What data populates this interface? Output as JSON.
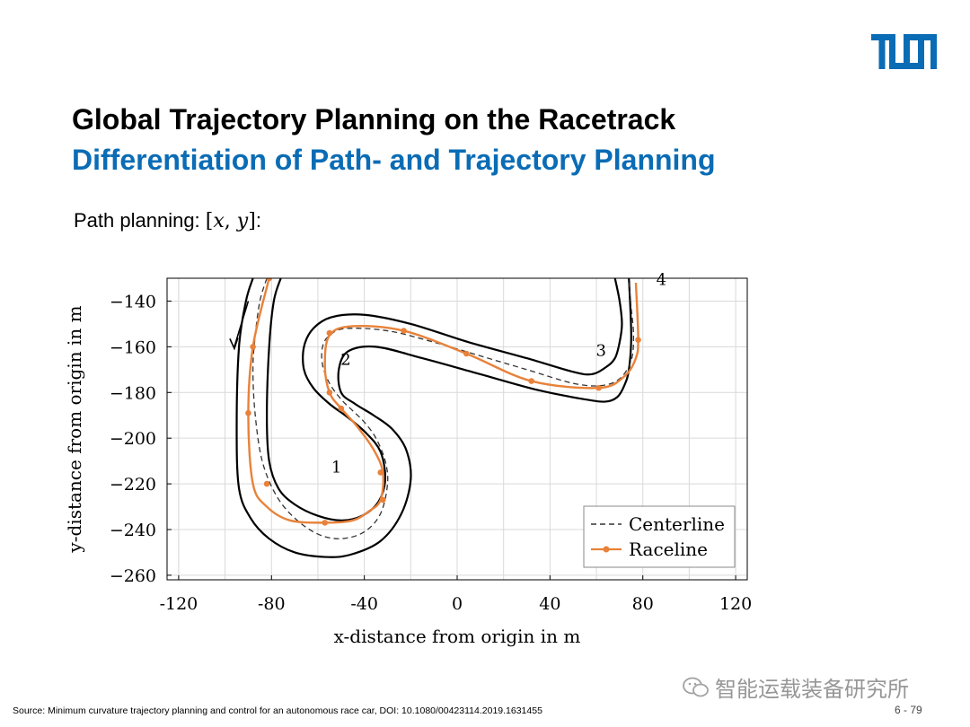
{
  "slide": {
    "title": "Global Trajectory Planning on the Racetrack",
    "subtitle": "Differentiation of Path- and Trajectory Planning",
    "lead_text": "Path planning: ",
    "lead_math_x": "x",
    "lead_math_y": "y",
    "lead_suffix": ":",
    "source": "Source: Minimum curvature trajectory planning and control for an autonomous race car, DOI: 10.1080/00423114.2019.1631455",
    "page_number": "6 - 79",
    "watermark": "智能运载装备研究所",
    "logo": "TUM"
  },
  "colors": {
    "title": "#000000",
    "subtitle": "#0a6cb5",
    "logo": "#0a6cb5",
    "track": "#000000",
    "centerline": "#333333",
    "raceline": "#e8823a",
    "grid": "#d9d9d9"
  },
  "chart_data": {
    "type": "line",
    "xlabel": "x-distance from origin in m",
    "ylabel": "y-distance from origin in m",
    "xlim": [
      -125,
      125
    ],
    "ylim": [
      -262,
      -130
    ],
    "xticks": [
      -120,
      -80,
      -40,
      0,
      40,
      80,
      120
    ],
    "yticks": [
      -140,
      -160,
      -180,
      -200,
      -220,
      -240,
      -260
    ],
    "grid": true,
    "legend_position": "bottom-right",
    "series": [
      {
        "name": "Centerline",
        "style": "dashed",
        "x": [
          -82,
          -85,
          -87,
          -88,
          -87,
          -84,
          -78,
          -70,
          -60,
          -50,
          -40,
          -33,
          -30,
          -31,
          -35,
          -40,
          -45,
          -50,
          -55,
          -58,
          -58,
          -55,
          -48,
          -30,
          -10,
          10,
          30,
          50,
          62,
          70,
          75,
          76,
          75,
          74
        ],
        "y": [
          -130,
          -140,
          -155,
          -170,
          -190,
          -210,
          -225,
          -235,
          -242,
          -244,
          -241,
          -233,
          -220,
          -210,
          -200,
          -193,
          -188,
          -183,
          -176,
          -168,
          -160,
          -155,
          -152,
          -153,
          -158,
          -164,
          -170,
          -176,
          -177,
          -174,
          -166,
          -155,
          -143,
          -132
        ]
      },
      {
        "name": "Raceline",
        "style": "solid-markers",
        "x": [
          -81,
          -88,
          -90,
          -88,
          -82,
          -72,
          -57,
          -45,
          -38,
          -33,
          -32,
          -36,
          -43,
          -50,
          -55,
          -57,
          -55,
          -45,
          -23,
          4,
          32,
          61,
          72,
          77,
          78,
          77
        ],
        "y": [
          -130,
          -160,
          -190,
          -220,
          -230,
          -236,
          -237,
          -236,
          -232,
          -227,
          -215,
          -205,
          -195,
          -187,
          -180,
          -168,
          -155,
          -151,
          -153,
          -163,
          -175,
          -178,
          -173,
          -165,
          -156,
          -132
        ],
        "markers_x": [
          -81,
          -88,
          -90,
          -82,
          -57,
          -32,
          -33,
          -50,
          -55,
          -55,
          -23,
          4,
          32,
          61,
          78
        ],
        "markers_y": [
          -130,
          -160,
          -189,
          -220,
          -237,
          -227,
          -215,
          -187,
          -180,
          -154,
          -153,
          -163,
          -175,
          -178,
          -157
        ]
      },
      {
        "name": "Track outer boundary",
        "style": "solid",
        "x": [
          -88,
          -91,
          -94,
          -95,
          -94,
          -89,
          -81,
          -70,
          -57,
          -46,
          -33,
          -24,
          -20,
          -22,
          -28,
          -36,
          -44,
          -50,
          -51,
          -47,
          -35,
          -15,
          10,
          35,
          55,
          64,
          69,
          72,
          74,
          75,
          74
        ],
        "y": [
          -130,
          -140,
          -160,
          -195,
          -222,
          -235,
          -244,
          -250,
          -252,
          -251,
          -245,
          -233,
          -218,
          -205,
          -196,
          -190,
          -185,
          -180,
          -170,
          -162,
          -160,
          -165,
          -172,
          -179,
          -183,
          -184,
          -182,
          -177,
          -170,
          -155,
          -130
        ]
      },
      {
        "name": "Track inner boundary",
        "style": "solid",
        "x": [
          -76,
          -79,
          -81,
          -82,
          -81,
          -77,
          -70,
          -60,
          -50,
          -41,
          -34,
          -31,
          -33,
          -39,
          -47,
          -55,
          -62,
          -66,
          -66,
          -62,
          -54,
          -40,
          -20,
          5,
          30,
          50,
          58,
          64,
          68,
          70,
          71,
          70,
          68
        ],
        "y": [
          -130,
          -140,
          -160,
          -190,
          -210,
          -222,
          -229,
          -234,
          -236,
          -234,
          -228,
          -218,
          -206,
          -198,
          -191,
          -185,
          -178,
          -170,
          -160,
          -152,
          -147,
          -146,
          -150,
          -158,
          -165,
          -171,
          -172,
          -169,
          -165,
          -158,
          -150,
          -140,
          -130
        ]
      }
    ],
    "annotations": [
      {
        "text": "1",
        "x": -52,
        "y": -215
      },
      {
        "text": "2",
        "x": -48,
        "y": -168
      },
      {
        "text": "3",
        "x": 62,
        "y": -164
      },
      {
        "text": "4",
        "x": 88,
        "y": -133
      }
    ],
    "arrow": {
      "x": [
        -90,
        -96
      ],
      "y": [
        -140,
        -160
      ],
      "direction": "down"
    }
  }
}
